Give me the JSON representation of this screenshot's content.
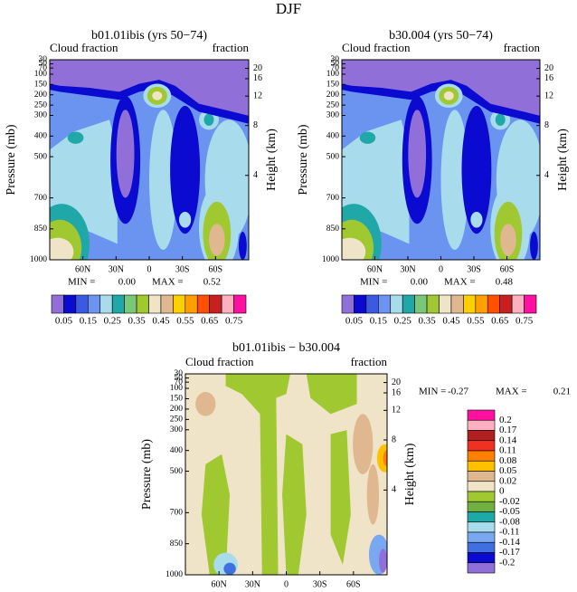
{
  "title": "DJF",
  "chart_data": [
    {
      "type": "contour",
      "title": "b01.01ibis (yrs 50−74)",
      "left_label": "Cloud fraction",
      "right_label": "fraction",
      "ylabel": "Pressure (mb)",
      "y2label": "Height (km)",
      "xlim": [
        90,
        -90
      ],
      "xticks": [
        {
          "value": 60,
          "label": "60N"
        },
        {
          "value": 30,
          "label": "30N"
        },
        0,
        {
          "value": -30,
          "label": "30S"
        },
        {
          "value": -60,
          "label": "60S"
        }
      ],
      "ylim": [
        1000,
        30
      ],
      "yticks": [
        30,
        50,
        70,
        100,
        150,
        200,
        250,
        300,
        400,
        500,
        700,
        850,
        1000
      ],
      "y2ticks": [
        4,
        8,
        12,
        16,
        20
      ],
      "min_label": "MIN =",
      "min": {
        "value": 0,
        "label": "0.00"
      },
      "max_label": "MAX =",
      "max": 0.52,
      "colorbar": {
        "labels": [
          0.05,
          0.15,
          0.25,
          0.35,
          0.45,
          0.55,
          0.65,
          0.75
        ],
        "colors": [
          "#9070d8",
          "#0a0ad0",
          "#3c5ae0",
          "#6a94f0",
          "#a8dcec",
          "#20a8a8",
          "#78c878",
          "#a0c830",
          "#f0e4c8",
          "#e0b890",
          "#ffd000",
          "#ffa000",
          "#ff5000",
          "#c82020",
          "#ffb0c0",
          "#ff10a0"
        ]
      }
    },
    {
      "type": "contour",
      "title": "b30.004 (yrs 50−74)",
      "left_label": "Cloud fraction",
      "right_label": "fraction",
      "ylabel": "Pressure (mb)",
      "y2label": "Height (km)",
      "xlim": [
        90,
        -90
      ],
      "xticks": [
        {
          "value": 60,
          "label": "60N"
        },
        {
          "value": 30,
          "label": "30N"
        },
        0,
        {
          "value": -30,
          "label": "30S"
        },
        {
          "value": -60,
          "label": "60S"
        }
      ],
      "ylim": [
        1000,
        30
      ],
      "yticks": [
        30,
        50,
        70,
        100,
        150,
        200,
        250,
        300,
        400,
        500,
        700,
        850,
        1000
      ],
      "y2ticks": [
        4,
        8,
        12,
        16,
        20
      ],
      "min_label": "MIN =",
      "min": {
        "value": 0,
        "label": "0.00"
      },
      "max_label": "MAX =",
      "max": 0.48,
      "colorbar": {
        "labels": [
          0.05,
          0.15,
          0.25,
          0.35,
          0.45,
          0.55,
          0.65,
          0.75
        ],
        "colors": [
          "#9070d8",
          "#0a0ad0",
          "#3c5ae0",
          "#6a94f0",
          "#a8dcec",
          "#20a8a8",
          "#78c878",
          "#a0c830",
          "#f0e4c8",
          "#e0b890",
          "#ffd000",
          "#ffa000",
          "#ff5000",
          "#c82020",
          "#ffb0c0",
          "#ff10a0"
        ]
      }
    },
    {
      "type": "contour-diff",
      "title": "b01.01ibis − b30.004",
      "left_label": "Cloud fraction",
      "right_label": "fraction",
      "ylabel": "Pressure (mb)",
      "y2label": "Height (km)",
      "xlim": [
        90,
        -90
      ],
      "xticks": [
        {
          "value": 60,
          "label": "60N"
        },
        {
          "value": 30,
          "label": "30N"
        },
        0,
        {
          "value": -30,
          "label": "30S"
        },
        {
          "value": -60,
          "label": "60S"
        }
      ],
      "ylim": [
        1000,
        30
      ],
      "yticks": [
        30,
        50,
        70,
        100,
        150,
        200,
        250,
        300,
        400,
        500,
        700,
        850,
        1000
      ],
      "y2ticks": [
        4,
        8,
        12,
        16,
        20
      ],
      "min_label": "MIN =",
      "min": -0.27,
      "max_label": "MAX =",
      "max": 0.21,
      "colorbar": {
        "labels": [
          0.2,
          0.17,
          0.14,
          0.11,
          0.08,
          0.05,
          0.02,
          0,
          -0.02,
          -0.05,
          -0.08,
          -0.11,
          -0.14,
          -0.17,
          -0.2
        ],
        "colors": [
          "#ff10a0",
          "#ffb0c0",
          "#b02020",
          "#f03020",
          "#ff8000",
          "#ffc000",
          "#e0b890",
          "#f0e4c8",
          "#a0c830",
          "#70b040",
          "#20a8a8",
          "#a8dcec",
          "#7aa8f0",
          "#4070e0",
          "#0a0ad0",
          "#9070d8"
        ]
      }
    }
  ]
}
